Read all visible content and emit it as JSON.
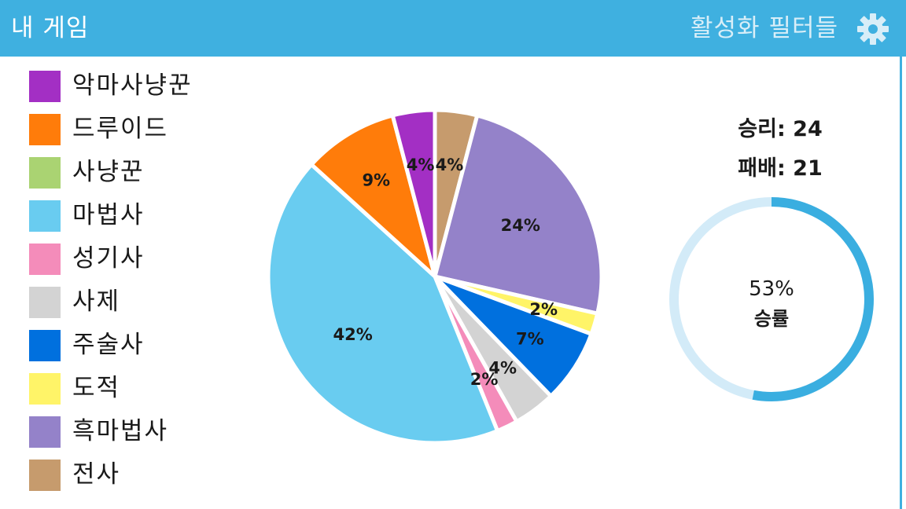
{
  "header": {
    "title": "내 게임",
    "filters_label": "활성화 필터들"
  },
  "legend": [
    {
      "label": "악마사냥꾼",
      "color": "#a32fc4"
    },
    {
      "label": "드루이드",
      "color": "#ff7c0a"
    },
    {
      "label": "사냥꾼",
      "color": "#aad372"
    },
    {
      "label": "마법사",
      "color": "#69ccf0"
    },
    {
      "label": "성기사",
      "color": "#f48cba"
    },
    {
      "label": "사제",
      "color": "#d3d3d3"
    },
    {
      "label": "주술사",
      "color": "#0070de"
    },
    {
      "label": "도적",
      "color": "#fff468"
    },
    {
      "label": "흑마법사",
      "color": "#9482c9"
    },
    {
      "label": "전사",
      "color": "#c69b6d"
    }
  ],
  "chart_data": {
    "type": "pie",
    "title": "",
    "slices": [
      {
        "label": "전사",
        "value": 4,
        "display": "4%",
        "color": "#c69b6d"
      },
      {
        "label": "흑마법사",
        "value": 24,
        "display": "24%",
        "color": "#9482c9"
      },
      {
        "label": "도적",
        "value": 2,
        "display": "2%",
        "color": "#fff468"
      },
      {
        "label": "주술사",
        "value": 7,
        "display": "7%",
        "color": "#0070de"
      },
      {
        "label": "사제",
        "value": 4,
        "display": "4%",
        "color": "#d3d3d3"
      },
      {
        "label": "성기사",
        "value": 2,
        "display": "2%",
        "color": "#f48cba"
      },
      {
        "label": "마법사",
        "value": 42,
        "display": "42%",
        "color": "#69ccf0"
      },
      {
        "label": "드루이드",
        "value": 9,
        "display": "9%",
        "color": "#ff7c0a"
      },
      {
        "label": "악마사냥꾼",
        "value": 4,
        "display": "4%",
        "color": "#a32fc4"
      }
    ]
  },
  "record": {
    "wins_label": "승리:",
    "wins": "24",
    "losses_label": "패배:",
    "losses": "21",
    "winrate_value": 53,
    "winrate_text": "53%",
    "winrate_label": "승률",
    "ring_color": "#3aaee0",
    "ring_track_color": "#d3ebf8"
  }
}
